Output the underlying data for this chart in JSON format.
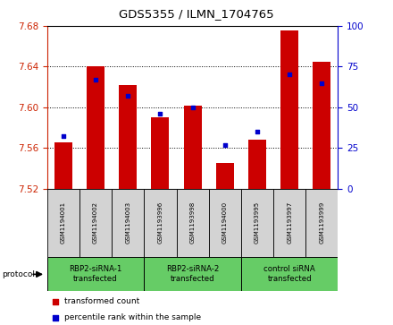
{
  "title": "GDS5355 / ILMN_1704765",
  "samples": [
    "GSM1194001",
    "GSM1194002",
    "GSM1194003",
    "GSM1193996",
    "GSM1193998",
    "GSM1194000",
    "GSM1193995",
    "GSM1193997",
    "GSM1193999"
  ],
  "red_values": [
    7.565,
    7.64,
    7.622,
    7.59,
    7.602,
    7.545,
    7.568,
    7.676,
    7.645
  ],
  "blue_values": [
    32,
    67,
    57,
    46,
    50,
    27,
    35,
    70,
    65
  ],
  "ylim_left": [
    7.52,
    7.68
  ],
  "ylim_right": [
    0,
    100
  ],
  "yticks_left": [
    7.52,
    7.56,
    7.6,
    7.64,
    7.68
  ],
  "yticks_right": [
    0,
    25,
    50,
    75,
    100
  ],
  "bar_color": "#CC0000",
  "dot_color": "#0000CC",
  "bar_width": 0.55,
  "background_color": "#ffffff",
  "sample_cell_color": "#d3d3d3",
  "group_cell_color": "#66CC66",
  "groups_info": [
    [
      0,
      3,
      "RBP2-siRNA-1\ntransfected"
    ],
    [
      3,
      6,
      "RBP2-siRNA-2\ntransfected"
    ],
    [
      6,
      9,
      "control siRNA\ntransfected"
    ]
  ],
  "protocol_label": "protocol",
  "legend_items": [
    {
      "color": "#CC0000",
      "label": "transformed count"
    },
    {
      "color": "#0000CC",
      "label": "percentile rank within the sample"
    }
  ],
  "left_tick_color": "#CC2200",
  "right_tick_color": "#0000CC"
}
